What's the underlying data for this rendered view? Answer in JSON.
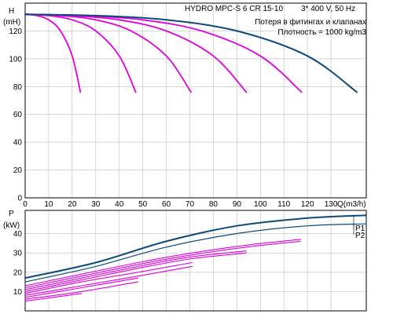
{
  "header": {
    "model": "HYDRO MPC-S 6 CR 15-10",
    "supply": "3* 400 V, 50 Hz"
  },
  "annotations": {
    "line1": "Потеря в фитингах и клапанах",
    "line2": "Плотность = 1000 kg/m3"
  },
  "colors": {
    "system_curve": "#0b4a7a",
    "pump_curve": "#e000e0",
    "grid": "#bfbfbf",
    "axis": "#000000"
  },
  "chart_data": [
    {
      "type": "line",
      "ylabel": "H",
      "yunit": "(mH)",
      "xlabel": "Q(m3/h)",
      "xlim": [
        0,
        145
      ],
      "ylim": [
        0,
        140
      ],
      "xticks": [
        0,
        10,
        20,
        30,
        40,
        50,
        60,
        70,
        80,
        90,
        100,
        110,
        120,
        130
      ],
      "yticks": [
        0,
        20,
        40,
        60,
        80,
        100,
        120
      ],
      "x_tick_labels": [
        "0",
        "10",
        "20",
        "30",
        "40",
        "50",
        "60",
        "70",
        "80",
        "90",
        "100",
        "110",
        "120",
        "130"
      ],
      "y_tick_labels": [
        "0",
        "20",
        "40",
        "60",
        "80",
        "100",
        "120"
      ],
      "grid": true,
      "series": [
        {
          "points": [
            [
              0,
              132
            ],
            [
              5,
              131
            ],
            [
              10,
              128
            ],
            [
              15,
              120
            ],
            [
              20,
              102
            ],
            [
              23.5,
              76
            ]
          ]
        },
        {
          "points": [
            [
              0,
              132
            ],
            [
              10,
              131
            ],
            [
              20,
              128
            ],
            [
              30,
              120
            ],
            [
              40,
              102
            ],
            [
              47,
              76
            ]
          ]
        },
        {
          "points": [
            [
              0,
              132
            ],
            [
              15,
              131
            ],
            [
              30,
              128
            ],
            [
              45,
              120
            ],
            [
              60,
              102
            ],
            [
              70.5,
              76
            ]
          ]
        },
        {
          "points": [
            [
              0,
              132
            ],
            [
              20,
              131
            ],
            [
              40,
              128
            ],
            [
              60,
              120
            ],
            [
              80,
              102
            ],
            [
              94,
              76
            ]
          ]
        },
        {
          "points": [
            [
              0,
              132
            ],
            [
              25,
              131
            ],
            [
              50,
              128
            ],
            [
              75,
              120
            ],
            [
              100,
              102
            ],
            [
              117.5,
              76
            ]
          ]
        },
        {
          "points": [
            [
              0,
              132
            ],
            [
              30,
              131
            ],
            [
              60,
              128
            ],
            [
              90,
              120
            ],
            [
              120,
              102
            ],
            [
              141,
              76
            ]
          ]
        }
      ]
    },
    {
      "type": "line",
      "ylabel": "P",
      "yunit": "(kW)",
      "xlim": [
        0,
        145
      ],
      "ylim": [
        0,
        52
      ],
      "yticks": [
        10,
        20,
        30,
        40
      ],
      "y_tick_labels": [
        "10",
        "20",
        "30",
        "40"
      ],
      "grid": true,
      "series": [
        {
          "name": "P1",
          "points": [
            [
              0,
              17
            ],
            [
              30,
              25
            ],
            [
              60,
              36
            ],
            [
              90,
              44
            ],
            [
              120,
              48
            ],
            [
              145,
              49.5
            ]
          ]
        },
        {
          "name": "P2",
          "points": [
            [
              0,
              15
            ],
            [
              30,
              23
            ],
            [
              60,
              33
            ],
            [
              90,
              40
            ],
            [
              120,
              44
            ],
            [
              145,
              45
            ]
          ]
        },
        {
          "points": [
            [
              0,
              13
            ],
            [
              24,
              19
            ],
            [
              48,
              25
            ],
            [
              71,
              30
            ],
            [
              94,
              34
            ],
            [
              117,
              37
            ]
          ]
        },
        {
          "points": [
            [
              0,
              11
            ],
            [
              24,
              17
            ],
            [
              48,
              23
            ],
            [
              71,
              28
            ],
            [
              94,
              31
            ]
          ]
        },
        {
          "points": [
            [
              0,
              9
            ],
            [
              24,
              15
            ],
            [
              48,
              20
            ],
            [
              71,
              25
            ]
          ]
        },
        {
          "points": [
            [
              0,
              7
            ],
            [
              24,
              12
            ],
            [
              48,
              17
            ]
          ]
        },
        {
          "points": [
            [
              0,
              5
            ],
            [
              24,
              9
            ]
          ]
        },
        {
          "points": [
            [
              0,
              12
            ],
            [
              24,
              18
            ],
            [
              48,
              24
            ],
            [
              71,
              29
            ],
            [
              94,
              33
            ],
            [
              117,
              36
            ]
          ]
        },
        {
          "points": [
            [
              0,
              10
            ],
            [
              24,
              16
            ],
            [
              48,
              22
            ],
            [
              71,
              27
            ],
            [
              94,
              30
            ]
          ]
        },
        {
          "points": [
            [
              0,
              8
            ],
            [
              24,
              13
            ],
            [
              48,
              18
            ],
            [
              71,
              23
            ]
          ]
        },
        {
          "points": [
            [
              0,
              6
            ],
            [
              24,
              10
            ],
            [
              48,
              15
            ]
          ]
        }
      ]
    }
  ]
}
